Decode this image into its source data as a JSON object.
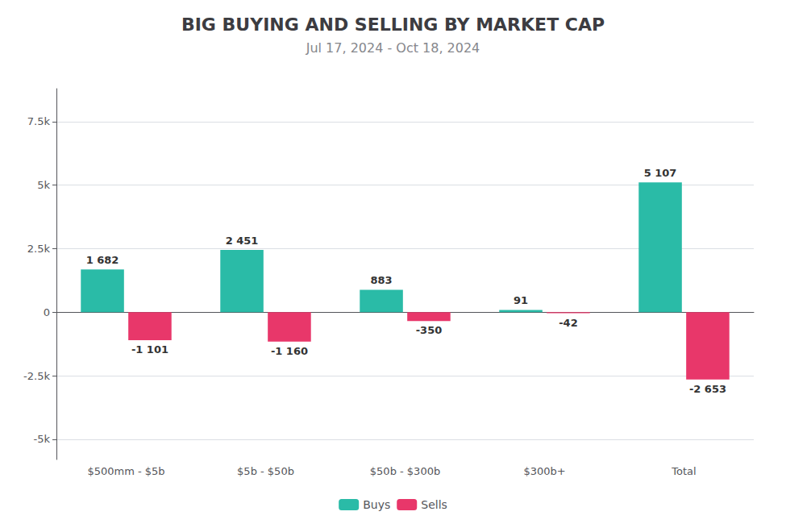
{
  "chart_data": {
    "type": "bar",
    "title": "BIG BUYING AND SELLING BY MARKET CAP",
    "subtitle": "Jul 17, 2024 - Oct 18, 2024",
    "categories": [
      "$500mm - $5b",
      "$5b - $50b",
      "$50b - $300b",
      "$300b+",
      "Total"
    ],
    "series": [
      {
        "name": "Buys",
        "color": "#2abba7",
        "values": [
          1682,
          2451,
          883,
          91,
          5107
        ],
        "value_labels": [
          "1 682",
          "2 451",
          "883",
          "91",
          "5 107"
        ]
      },
      {
        "name": "Sells",
        "color": "#e8376a",
        "values": [
          -1101,
          -1160,
          -350,
          -42,
          -2653
        ],
        "value_labels": [
          "-1 101",
          "-1 160",
          "-350",
          "-42",
          "-2 653"
        ]
      }
    ],
    "ylim": [
      -5800,
      8800
    ],
    "yticks": [
      {
        "value": -5000,
        "label": "-5k"
      },
      {
        "value": -2500,
        "label": "-2.5k"
      },
      0,
      {
        "value": 2500,
        "label": "2.5k"
      },
      {
        "value": 5000,
        "label": "5k"
      },
      {
        "value": 7500,
        "label": "7.5k"
      }
    ],
    "grid": true,
    "legend": "bottom",
    "data_labels": true
  }
}
